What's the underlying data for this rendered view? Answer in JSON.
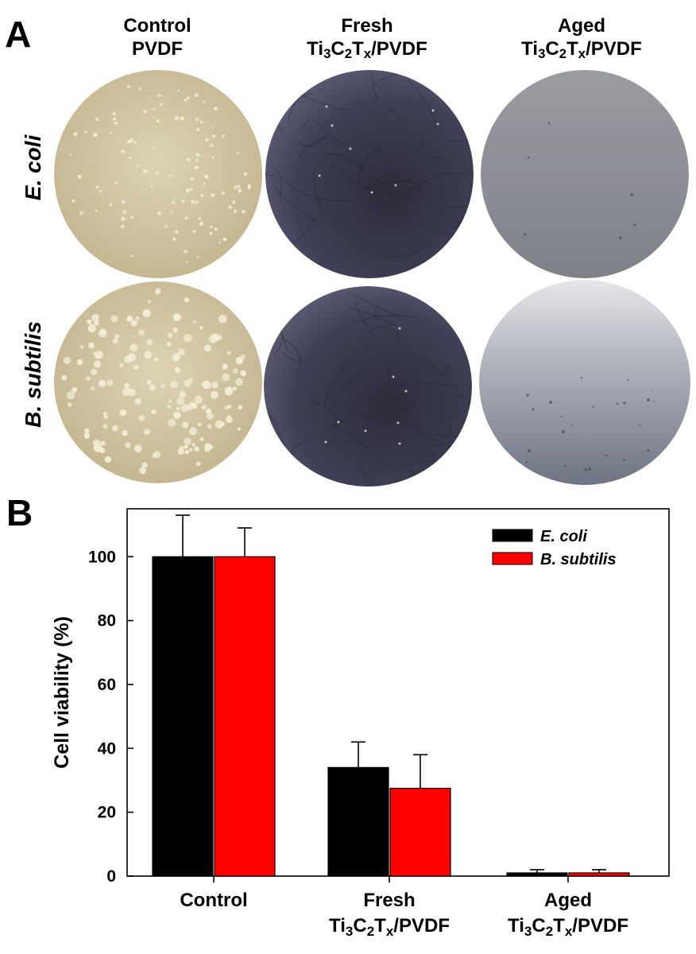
{
  "panel_a": {
    "letter": "A",
    "columns": [
      {
        "line1": "Control",
        "line2": "PVDF"
      },
      {
        "line1": "Fresh",
        "line2": "Ti3C2Tx/PVDF"
      },
      {
        "line1": "Aged",
        "line2": "Ti3C2Tx/PVDF"
      }
    ],
    "rows": [
      "E. coli",
      "B. subtilis"
    ],
    "colors": {
      "control_agar": "#d2c6a4",
      "fresh_membrane": "#3a3a4e",
      "aged_membrane": "#8e9097",
      "colony": "#f3ecd6"
    }
  },
  "panel_b": {
    "letter": "B"
  },
  "chart_data": {
    "type": "bar",
    "ylabel": "Cell viability (%)",
    "xlabel": "",
    "ylim": [
      0,
      115
    ],
    "yticks": [
      0,
      20,
      40,
      60,
      80,
      100
    ],
    "categories": [
      "Control",
      "Fresh Ti3C2Tx/PVDF",
      "Aged Ti3C2Tx/PVDF"
    ],
    "category_labels": [
      {
        "line1": "Control",
        "line2": ""
      },
      {
        "line1": "Fresh",
        "line2": "Ti3C2Tx/PVDF"
      },
      {
        "line1": "Aged",
        "line2": "Ti3C2Tx/PVDF"
      }
    ],
    "series": [
      {
        "name": "E. coli",
        "color": "#000000",
        "values": [
          100,
          34,
          1
        ],
        "errors": [
          13,
          8,
          1
        ]
      },
      {
        "name": "B. subtilis",
        "color": "#ff0000",
        "values": [
          100,
          27.5,
          1
        ],
        "errors": [
          9,
          10.5,
          1
        ]
      }
    ],
    "legend_position": "top-right"
  }
}
